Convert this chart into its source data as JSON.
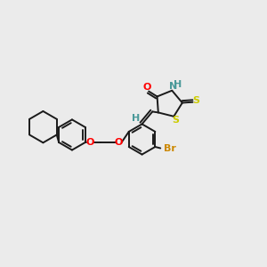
{
  "background_color": "#ebebeb",
  "bond_color": "#1a1a1a",
  "atom_colors": {
    "O": "#ff0000",
    "N": "#4a9999",
    "S": "#cccc00",
    "Br": "#cc8800",
    "H": "#4a9999",
    "C": "#1a1a1a"
  },
  "figsize": [
    3.0,
    3.0
  ],
  "dpi": 100
}
